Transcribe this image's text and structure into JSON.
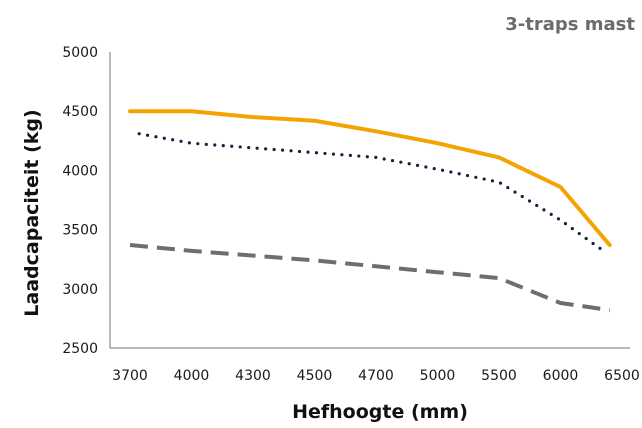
{
  "chart_data": {
    "type": "line",
    "title": "3-traps mast",
    "xlabel": "Hefhoogte (mm)",
    "ylabel": "Laadcapaciteit (kg)",
    "categories": [
      "3700",
      "4000",
      "4300",
      "4500",
      "4700",
      "5000",
      "5500",
      "6000",
      "6500"
    ],
    "yticks": [
      "2500",
      "3000",
      "3500",
      "4000",
      "4500",
      "5000"
    ],
    "ylim": [
      2500,
      5000
    ],
    "grid": false,
    "legend": "none",
    "series": [
      {
        "color": "#f5a300",
        "style": "solid",
        "x": [
          0,
          1,
          2,
          3,
          4,
          5,
          6,
          7,
          7.8
        ],
        "values": [
          4500,
          4500,
          4450,
          4420,
          4330,
          4230,
          4110,
          3860,
          3370
        ]
      },
      {
        "color": "#16213e",
        "style": "dotted",
        "x": [
          0.15,
          1,
          2,
          3,
          4,
          5,
          6,
          7,
          7.7
        ],
        "values": [
          4310,
          4230,
          4190,
          4150,
          4110,
          4010,
          3900,
          3580,
          3320
        ]
      },
      {
        "color": "#6e6e6e",
        "style": "dashed",
        "x": [
          0,
          1,
          2,
          3,
          4,
          5,
          6,
          7,
          7.8
        ],
        "values": [
          3370,
          3320,
          3280,
          3240,
          3190,
          3140,
          3090,
          2880,
          2820
        ]
      }
    ]
  }
}
